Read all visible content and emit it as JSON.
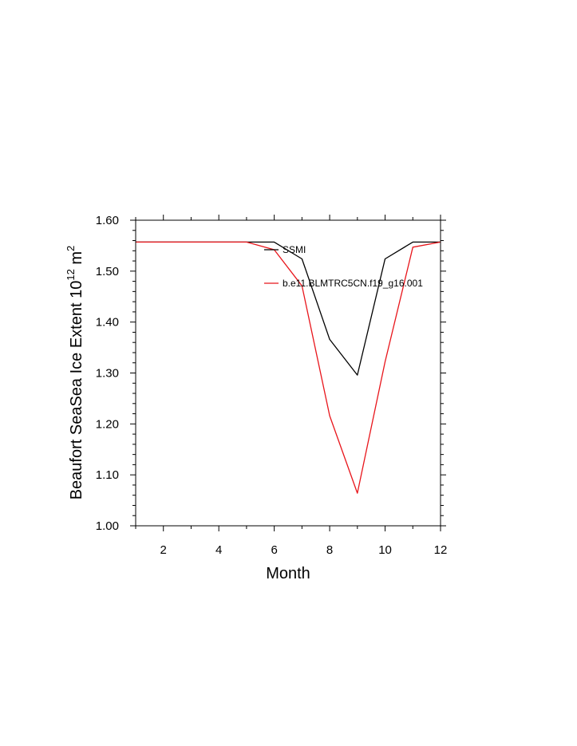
{
  "chart_data": {
    "type": "line",
    "title": "",
    "xlabel": "Month",
    "ylabel": "Beaufort SeaSea Ice Extent 10",
    "ylabel_sup": "12",
    "ylabel_unit": " m",
    "ylabel_unit_sup": "2",
    "xlim": [
      1,
      12
    ],
    "ylim": [
      1.0,
      1.6
    ],
    "x_ticks": [
      2,
      4,
      6,
      8,
      10,
      12
    ],
    "x_tick_labels": [
      "2",
      "4",
      "6",
      "8",
      "10",
      "12"
    ],
    "y_ticks": [
      1.0,
      1.1,
      1.2,
      1.3,
      1.4,
      1.5,
      1.6
    ],
    "y_tick_labels": [
      "1.00",
      "1.10",
      "1.20",
      "1.30",
      "1.40",
      "1.50",
      "1.60"
    ],
    "grid": false,
    "legend_position": "top-right",
    "x": [
      1,
      2,
      3,
      4,
      5,
      6,
      7,
      8,
      9,
      10,
      11,
      12
    ],
    "series": [
      {
        "name": "SSMI",
        "color": "#000000",
        "values": [
          1.557,
          1.557,
          1.557,
          1.557,
          1.557,
          1.557,
          1.524,
          1.366,
          1.296,
          1.524,
          1.557,
          1.557
        ]
      },
      {
        "name": "b.e11.BLMTRC5CN.f19_g16.001",
        "color": "#e8151b",
        "values": [
          1.557,
          1.557,
          1.557,
          1.557,
          1.557,
          1.542,
          1.471,
          1.216,
          1.064,
          1.322,
          1.547,
          1.557
        ]
      }
    ]
  }
}
